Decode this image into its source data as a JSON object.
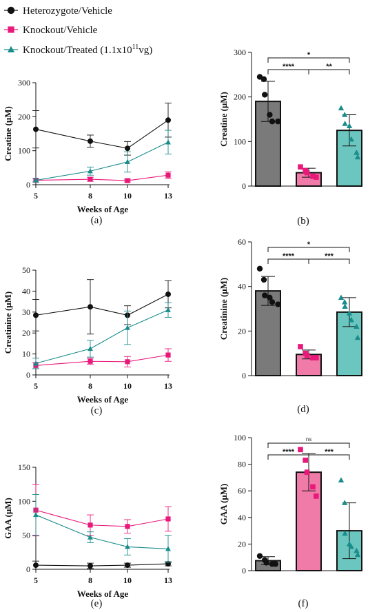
{
  "colors": {
    "heterozygote": "#111111",
    "knockout": "#e8197a",
    "treated": "#1a8c8c",
    "bar_het": "#7a7a7a",
    "bar_ko": "#f07aa8",
    "bar_tr": "#6cc6c0"
  },
  "legend": [
    {
      "label": "Heterozygote/Vehicle",
      "marker": "circle",
      "color": "#111111"
    },
    {
      "label": "Knockout/Vehicle",
      "marker": "square",
      "color": "#e8197a"
    },
    {
      "label": "Knockout/Treated (1.1x10",
      "sup": "11",
      "tail": "vg)",
      "marker": "triangle",
      "color": "#1a8c8c"
    }
  ],
  "chart_data": [
    {
      "id": "a",
      "panel_label": "(a)",
      "type": "line",
      "xlabel": "Weeks of Age",
      "ylabel": "Creatine (μM)",
      "x": [
        5,
        8,
        10,
        13
      ],
      "x_ticks": [
        "5",
        "8",
        "10",
        "13"
      ],
      "ylim": [
        0,
        300
      ],
      "y_ticks": [
        0,
        100,
        200,
        300
      ],
      "series": [
        {
          "name": "Heterozygote/Vehicle",
          "marker": "circle",
          "color": "#111111",
          "values": [
            163,
            128,
            107,
            190
          ],
          "err": [
            55,
            18,
            20,
            50
          ]
        },
        {
          "name": "Knockout/Vehicle",
          "marker": "square",
          "color": "#e8197a",
          "values": [
            13,
            16,
            12,
            28
          ],
          "err": [
            5,
            6,
            4,
            10
          ]
        },
        {
          "name": "Knockout/Treated (1.1x10^11vg)",
          "marker": "triangle",
          "color": "#1a8c8c",
          "values": [
            13,
            40,
            67,
            125
          ],
          "err": [
            5,
            12,
            30,
            35
          ]
        }
      ]
    },
    {
      "id": "b",
      "panel_label": "(b)",
      "type": "bar",
      "ylabel": "Creatine (μM)",
      "ylim": [
        0,
        300
      ],
      "y_ticks": [
        0,
        100,
        200,
        300
      ],
      "bars": [
        {
          "group": "Heterozygote/Vehicle",
          "value": 190,
          "err": 45,
          "marker": "circle",
          "points": [
            245,
            240,
            205,
            160,
            145,
            145
          ]
        },
        {
          "group": "Knockout/Vehicle",
          "value": 30,
          "err": 10,
          "marker": "square",
          "points": [
            43,
            35,
            30,
            22,
            20
          ]
        },
        {
          "group": "Knockout/Treated (1.1x10^11vg)",
          "value": 125,
          "err": 35,
          "marker": "triangle",
          "points": [
            175,
            160,
            140,
            135,
            105,
            75,
            65
          ]
        }
      ],
      "comparisons": [
        {
          "from": 0,
          "to": 2,
          "label": "*",
          "level": 2
        },
        {
          "from": 0,
          "to": 1,
          "label": "****",
          "level": 1
        },
        {
          "from": 1,
          "to": 2,
          "label": "**",
          "level": 1
        }
      ]
    },
    {
      "id": "c",
      "panel_label": "(c)",
      "type": "line",
      "xlabel": "Weeks of Age",
      "ylabel": "Creatinine (μM)",
      "x": [
        5,
        8,
        10,
        13
      ],
      "x_ticks": [
        "5",
        "8",
        "10",
        "13"
      ],
      "ylim": [
        0,
        50
      ],
      "y_ticks": [
        0,
        10,
        20,
        30,
        40,
        50
      ],
      "series": [
        {
          "name": "Heterozygote/Vehicle",
          "marker": "circle",
          "color": "#111111",
          "values": [
            28.5,
            32.5,
            28.5,
            38.5
          ],
          "err": [
            7.5,
            13,
            4.5,
            6.5
          ]
        },
        {
          "name": "Knockout/Vehicle",
          "marker": "square",
          "color": "#e8197a",
          "values": [
            4.5,
            6.5,
            6.3,
            9.5
          ],
          "err": [
            1.5,
            1.5,
            2.5,
            3
          ]
        },
        {
          "name": "Knockout/Treated (1.1x10^11vg)",
          "marker": "triangle",
          "color": "#1a8c8c",
          "values": [
            5.5,
            12.5,
            22.5,
            31
          ],
          "err": [
            2.5,
            4,
            8,
            3.5
          ]
        }
      ]
    },
    {
      "id": "d",
      "panel_label": "(d)",
      "type": "bar",
      "ylabel": "Creatinine (μM)",
      "ylim": [
        0,
        60
      ],
      "y_ticks": [
        0,
        20,
        40,
        60
      ],
      "bars": [
        {
          "group": "Heterozygote/Vehicle",
          "value": 38,
          "err": 6.5,
          "marker": "circle",
          "points": [
            48,
            43,
            36,
            35,
            33,
            32
          ]
        },
        {
          "group": "Knockout/Vehicle",
          "value": 9.5,
          "err": 2,
          "marker": "square",
          "points": [
            13,
            10,
            9,
            8,
            8
          ]
        },
        {
          "group": "Knockout/Treated (1.1x10^11vg)",
          "value": 28.5,
          "err": 6.5,
          "marker": "triangle",
          "points": [
            35,
            33,
            31,
            28,
            25,
            22,
            17
          ]
        }
      ],
      "comparisons": [
        {
          "from": 0,
          "to": 2,
          "label": "*",
          "level": 2
        },
        {
          "from": 0,
          "to": 1,
          "label": "****",
          "level": 1
        },
        {
          "from": 1,
          "to": 2,
          "label": "***",
          "level": 1
        }
      ]
    },
    {
      "id": "e",
      "panel_label": "(e)",
      "type": "line",
      "xlabel": "Weeks of Age",
      "ylabel": "GAA (μM)",
      "x": [
        5,
        8,
        10,
        13
      ],
      "x_ticks": [
        "5",
        "8",
        "10",
        "13"
      ],
      "ylim": [
        0,
        150
      ],
      "y_ticks": [
        0,
        50,
        100,
        150
      ],
      "series": [
        {
          "name": "Heterozygote/Vehicle",
          "marker": "circle",
          "color": "#111111",
          "values": [
            6,
            5,
            6,
            8
          ],
          "err": [
            6,
            4,
            3,
            3
          ]
        },
        {
          "name": "Knockout/Vehicle",
          "marker": "square",
          "color": "#e8197a",
          "values": [
            87,
            65,
            63,
            74
          ],
          "err": [
            38,
            15,
            10,
            18
          ]
        },
        {
          "name": "Knockout/Treated (1.1x10^11vg)",
          "marker": "triangle",
          "color": "#1a8c8c",
          "values": [
            80,
            47,
            33,
            30
          ],
          "err": [
            30,
            8,
            12,
            20
          ]
        }
      ]
    },
    {
      "id": "f",
      "panel_label": "(f)",
      "type": "bar",
      "ylabel": "GAA (μM)",
      "ylim": [
        0,
        100
      ],
      "y_ticks": [
        0,
        20,
        40,
        60,
        80,
        100
      ],
      "bars": [
        {
          "group": "Heterozygote/Vehicle",
          "value": 7.5,
          "err": 3,
          "marker": "circle",
          "points": [
            11,
            8,
            6,
            5,
            5
          ]
        },
        {
          "group": "Knockout/Vehicle",
          "value": 74,
          "err": 14,
          "marker": "square",
          "points": [
            91,
            83,
            74,
            63,
            56
          ]
        },
        {
          "group": "Knockout/Treated (1.1x10^11vg)",
          "value": 30,
          "err": 21,
          "marker": "triangle",
          "points": [
            68,
            51,
            28,
            20,
            18,
            15,
            12
          ]
        }
      ],
      "comparisons": [
        {
          "from": 0,
          "to": 2,
          "label": "ns",
          "level": 2
        },
        {
          "from": 0,
          "to": 1,
          "label": "****",
          "level": 1
        },
        {
          "from": 1,
          "to": 2,
          "label": "***",
          "level": 1
        }
      ]
    }
  ]
}
